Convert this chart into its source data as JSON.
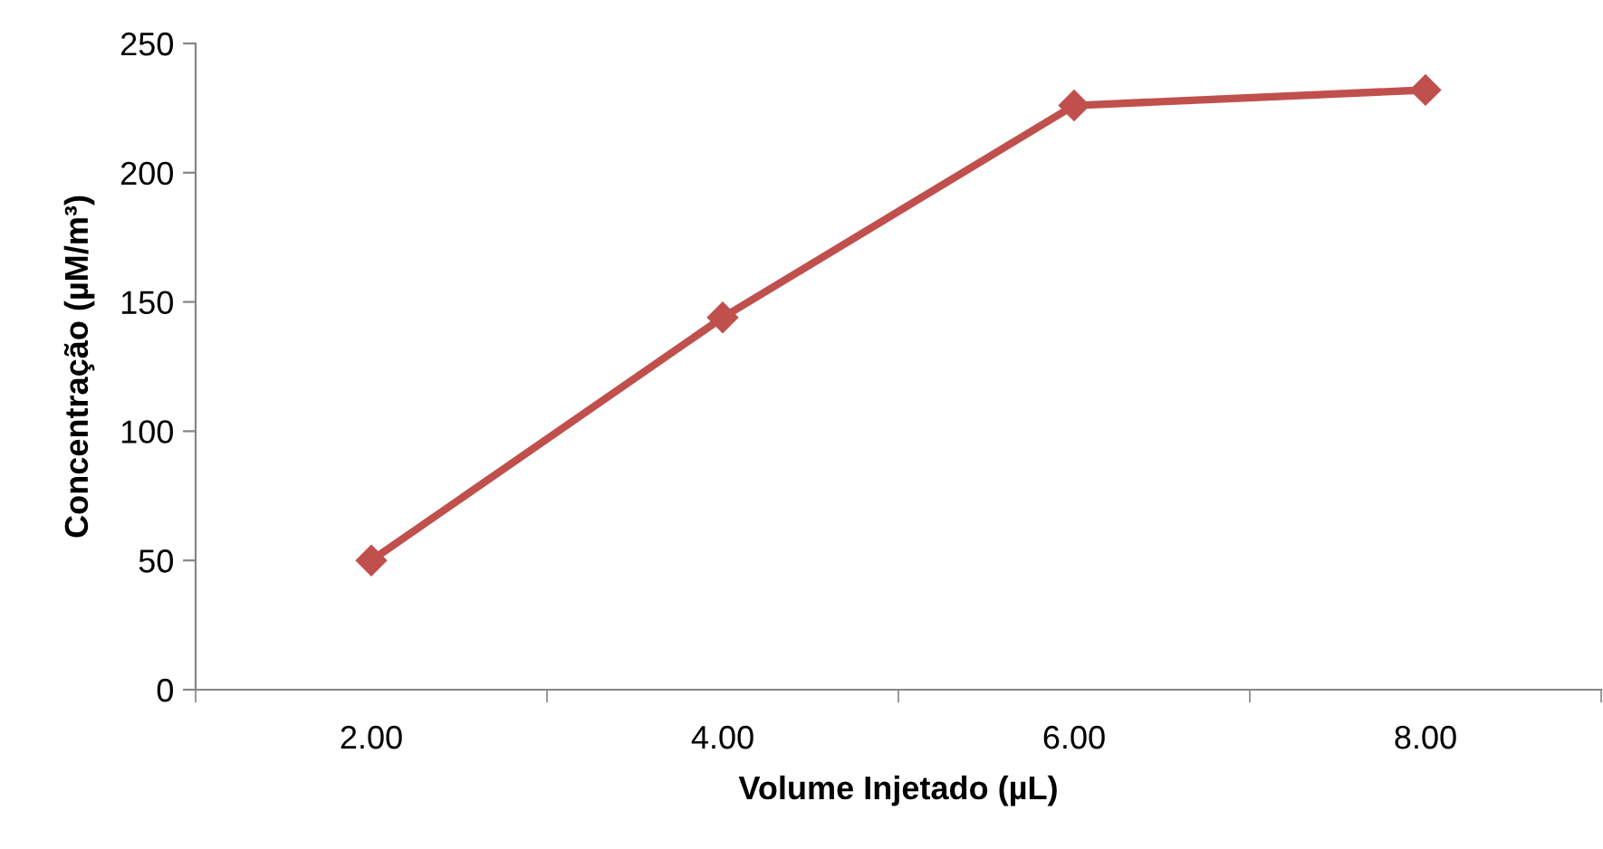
{
  "chart_data": {
    "type": "line",
    "xlabel": "Volume Injetado (µL)",
    "ylabel": "Concentração (µM/m³)",
    "categories": [
      "2.00",
      "4.00",
      "6.00",
      "8.00"
    ],
    "series": [
      {
        "color": "#c0504d",
        "values": [
          50,
          144,
          226,
          232
        ]
      }
    ],
    "ylim": [
      0,
      250
    ],
    "yticks": [
      0,
      50,
      100,
      150,
      200,
      250
    ],
    "marker": "diamond",
    "line_style": "solid",
    "grid": false,
    "legend": false
  }
}
